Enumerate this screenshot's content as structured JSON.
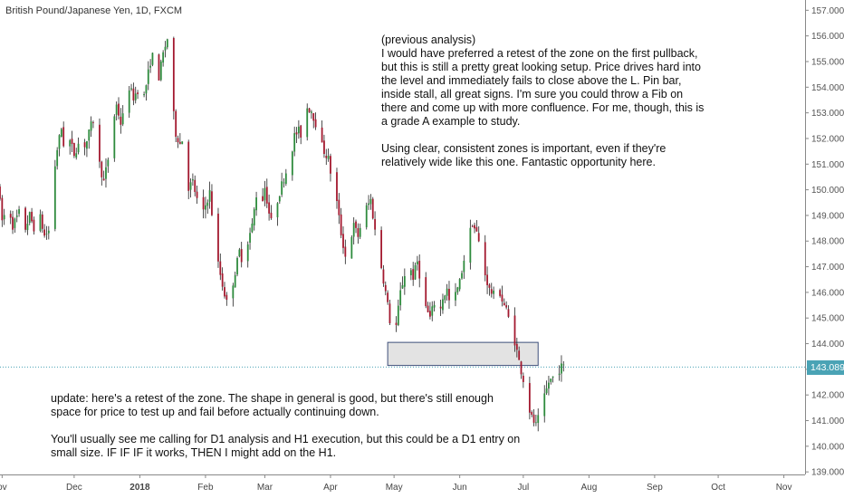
{
  "chart_data": {
    "type": "candlestick",
    "symbol_title": "British Pound/Japanese Yen, 1D, FXCM",
    "y_axis": {
      "ticks": [
        139.0,
        140.0,
        141.0,
        142.0,
        143.0,
        144.0,
        145.0,
        146.0,
        147.0,
        148.0,
        149.0,
        150.0,
        151.0,
        152.0,
        153.0,
        154.0,
        155.0,
        156.0,
        157.0
      ],
      "tick_labels": [
        "139.000",
        "140.000",
        "141.000",
        "142.000",
        "143.000",
        "144.000",
        "145.000",
        "146.000",
        "147.000",
        "148.000",
        "149.000",
        "150.000",
        "151.000",
        "152.000",
        "153.000",
        "154.000",
        "155.000",
        "156.000",
        "157.000"
      ],
      "range": [
        138.9,
        157.4
      ]
    },
    "x_axis": {
      "labels": [
        "ov",
        "Dec",
        "2018",
        "Feb",
        "Mar",
        "Apr",
        "May",
        "Jun",
        "Jul",
        "Aug",
        "Sep",
        "Oct",
        "Nov"
      ],
      "label_days": [
        -4,
        30,
        61,
        92,
        120,
        151,
        181,
        212,
        242,
        273,
        304,
        334,
        365
      ],
      "range_days": [
        -5,
        375
      ]
    },
    "last_price": "143.089",
    "last_price_value": 143.089,
    "zone": {
      "day_start": 178,
      "day_end": 249,
      "low": 143.15,
      "high": 144.05
    },
    "colors": {
      "bull": "#2e8b3d",
      "bear": "#a3192f",
      "price_line": "#4aa3b5",
      "zone_fill": "#e3e3e3",
      "zone_border": "#3d4f7a"
    },
    "price_path": [
      [
        -5,
        150.2
      ],
      [
        -3,
        148.8
      ],
      [
        0,
        149.4
      ],
      [
        2,
        148.6
      ],
      [
        5,
        149.1
      ],
      [
        8,
        148.5
      ],
      [
        10,
        149.0
      ],
      [
        13,
        148.3
      ],
      [
        15,
        148.9
      ],
      [
        17,
        148.2
      ],
      [
        19,
        148.4
      ],
      [
        21,
        150.3
      ],
      [
        23,
        151.6
      ],
      [
        25,
        152.4
      ],
      [
        27,
        151.2
      ],
      [
        29,
        151.9
      ],
      [
        31,
        151.4
      ],
      [
        33,
        151.8
      ],
      [
        35,
        151.6
      ],
      [
        37,
        151.9
      ],
      [
        39,
        152.5
      ],
      [
        41,
        152.9
      ],
      [
        43,
        151.0
      ],
      [
        45,
        150.3
      ],
      [
        47,
        151.2
      ],
      [
        49,
        152.5
      ],
      [
        51,
        153.3
      ],
      [
        53,
        152.6
      ],
      [
        55,
        153.1
      ],
      [
        57,
        154.0
      ],
      [
        59,
        153.6
      ],
      [
        61,
        153.9
      ],
      [
        63,
        153.2
      ],
      [
        65,
        154.1
      ],
      [
        67,
        155.0
      ],
      [
        69,
        155.4
      ],
      [
        71,
        154.4
      ],
      [
        73,
        155.3
      ],
      [
        75,
        155.9
      ],
      [
        77,
        153.6
      ],
      [
        79,
        152.2
      ],
      [
        81,
        151.8
      ],
      [
        83,
        152.1
      ],
      [
        85,
        150.1
      ],
      [
        87,
        150.3
      ],
      [
        89,
        149.6
      ],
      [
        91,
        148.8
      ],
      [
        93,
        149.4
      ],
      [
        95,
        149.9
      ],
      [
        97,
        148.3
      ],
      [
        99,
        147.1
      ],
      [
        101,
        146.3
      ],
      [
        103,
        145.6
      ],
      [
        105,
        146.0
      ],
      [
        107,
        146.8
      ],
      [
        109,
        147.6
      ],
      [
        111,
        147.1
      ],
      [
        113,
        148.0
      ],
      [
        115,
        148.6
      ],
      [
        117,
        149.8
      ],
      [
        119,
        149.2
      ],
      [
        121,
        150.1
      ],
      [
        123,
        149.1
      ],
      [
        125,
        148.4
      ],
      [
        127,
        149.6
      ],
      [
        129,
        150.2
      ],
      [
        131,
        150.7
      ],
      [
        133,
        151.2
      ],
      [
        135,
        152.1
      ],
      [
        137,
        152.3
      ],
      [
        139,
        152.0
      ],
      [
        141,
        153.2
      ],
      [
        143,
        153.1
      ],
      [
        145,
        152.6
      ],
      [
        147,
        151.9
      ],
      [
        149,
        151.5
      ],
      [
        151,
        151.2
      ],
      [
        153,
        150.2
      ],
      [
        155,
        149.5
      ],
      [
        157,
        148.3
      ],
      [
        159,
        147.4
      ],
      [
        161,
        147.9
      ],
      [
        163,
        148.6
      ],
      [
        165,
        148.2
      ],
      [
        167,
        148.9
      ],
      [
        169,
        149.3
      ],
      [
        171,
        149.6
      ],
      [
        173,
        148.4
      ],
      [
        175,
        147.5
      ],
      [
        177,
        146.5
      ],
      [
        179,
        145.5
      ],
      [
        181,
        144.3
      ],
      [
        183,
        144.7
      ],
      [
        185,
        146.0
      ],
      [
        187,
        146.7
      ],
      [
        189,
        147.1
      ],
      [
        191,
        146.6
      ],
      [
        193,
        147.2
      ],
      [
        195,
        146.2
      ],
      [
        197,
        145.4
      ],
      [
        199,
        145.0
      ],
      [
        201,
        145.6
      ],
      [
        203,
        144.9
      ],
      [
        205,
        145.8
      ],
      [
        207,
        146.1
      ],
      [
        209,
        145.2
      ],
      [
        211,
        145.9
      ],
      [
        213,
        146.4
      ],
      [
        215,
        147.3
      ],
      [
        217,
        148.1
      ],
      [
        219,
        148.7
      ],
      [
        221,
        148.3
      ],
      [
        223,
        147.6
      ],
      [
        225,
        146.7
      ],
      [
        227,
        146.1
      ],
      [
        229,
        145.9
      ],
      [
        231,
        146.3
      ],
      [
        233,
        145.7
      ],
      [
        235,
        145.3
      ],
      [
        237,
        144.7
      ],
      [
        239,
        144.1
      ],
      [
        241,
        143.3
      ],
      [
        243,
        142.6
      ],
      [
        245,
        141.7
      ],
      [
        247,
        141.1
      ],
      [
        249,
        140.8
      ],
      [
        251,
        141.3
      ],
      [
        253,
        141.9
      ],
      [
        255,
        142.5
      ],
      [
        257,
        142.7
      ],
      [
        259,
        142.9
      ],
      [
        261,
        143.1
      ]
    ]
  },
  "annotations": {
    "top_note": "(previous analysis)\nI would have preferred a retest of the zone on the first pullback, but this is still a pretty great looking setup. Price drives hard into the level and immediately fails to close above the L. Pin bar, inside stall, all great signs. I'm sure you could throw a Fib on there and come up with more confluence. For me, though, this is a grade A example to study.\n\nUsing clear, consistent zones is important, even if they're relatively wide like this one. Fantastic opportunity here.",
    "bottom_note": "update: here's a retest of the zone. The shape in general is good, but there's still enough space for price to test up and fail before actually continuing down.\n\nYou'll usually see me calling for D1 analysis and H1 execution, but this could be a D1 entry on small size. IF IF IF it works, THEN I might add on the H1."
  }
}
